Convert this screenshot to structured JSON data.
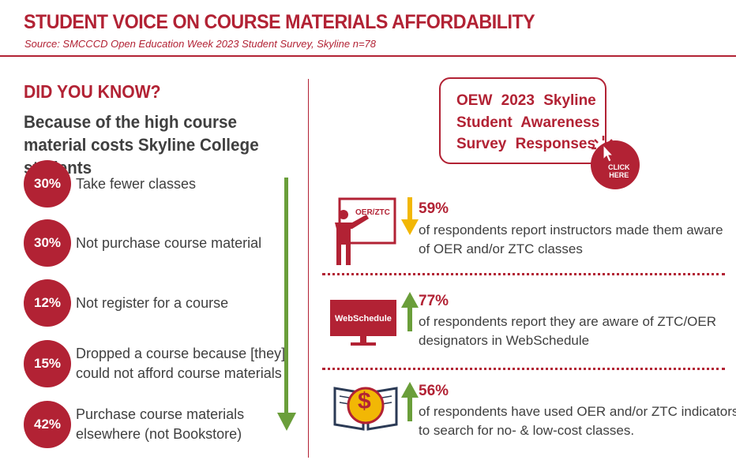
{
  "header": {
    "title": "STUDENT VOICE ON COURSE MATERIALS AFFORDABILITY",
    "source": "Source: SMCCCD Open Education Week 2023 Student Survey, Skyline n=78"
  },
  "left": {
    "heading": "DID YOU KNOW?",
    "subheading": "Because of the high course material costs Skyline College students",
    "stats": [
      {
        "percent": "30%",
        "line1": "Take fewer classes",
        "line2": ""
      },
      {
        "percent": "30%",
        "line1": "Not purchase course material",
        "line2": ""
      },
      {
        "percent": "12%",
        "line1": "Not register for a course",
        "line2": ""
      },
      {
        "percent": "15%",
        "line1": "Dropped a course because [they]",
        "line2": "could not afford course materials"
      },
      {
        "percent": "42%",
        "line1": "Purchase course materials",
        "line2": "elsewhere (not Bookstore)"
      }
    ]
  },
  "right": {
    "survey_title_lines": [
      "OEW 2023 Skyline",
      "Student Awareness",
      "Survey Responses"
    ],
    "click_here": [
      "CLICK",
      "HERE"
    ],
    "items": [
      {
        "icon_label": "OER/ZTC",
        "percent": "59%",
        "line1": "of respondents report instructors made them aware",
        "line2": "of OER and/or ZTC classes"
      },
      {
        "icon_label": "WebSchedule",
        "percent": "77%",
        "line1": "of respondents report they are aware of ZTC/OER",
        "line2": "designators in WebSchedule"
      },
      {
        "icon_label": "$",
        "percent": "56%",
        "line1": "of respondents have used OER and/or ZTC indicators",
        "line2": "to search for no- & low-cost classes."
      }
    ]
  },
  "colors": {
    "accent": "#b22234",
    "text": "#3f3f3f",
    "arrow_green": "#6a9e3a",
    "arrow_yellow": "#f2b705"
  },
  "icons": [
    "presenter-icon",
    "monitor-icon",
    "book-dollar-icon",
    "pointer-click-icon",
    "down-arrow-icon",
    "up-arrow-icon"
  ]
}
